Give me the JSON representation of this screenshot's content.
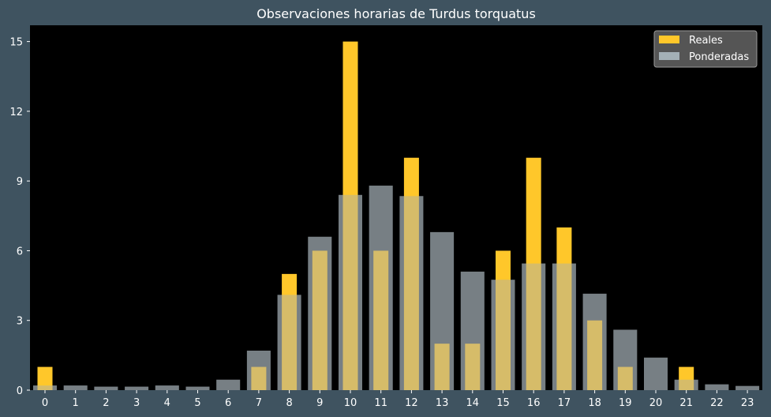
{
  "chart_data": {
    "type": "bar",
    "title": "Observaciones horarias de Turdus torquatus",
    "xlabel": "",
    "ylabel": "",
    "categories": [
      "0",
      "1",
      "2",
      "3",
      "4",
      "5",
      "6",
      "7",
      "8",
      "9",
      "10",
      "11",
      "12",
      "13",
      "14",
      "15",
      "16",
      "17",
      "18",
      "19",
      "20",
      "21",
      "22",
      "23"
    ],
    "ylim": [
      0,
      15.7
    ],
    "yticks": [
      "0",
      "3",
      "6",
      "9",
      "12",
      "15"
    ],
    "ytick_values": [
      0,
      3,
      6,
      9,
      12,
      15
    ],
    "grid": false,
    "legend_position": "top-right",
    "series": [
      {
        "name": "Reales",
        "color": "#ffc72a",
        "values": [
          1,
          0,
          0,
          0,
          0,
          0,
          0,
          1,
          5,
          6,
          15,
          6,
          10,
          2,
          2,
          6,
          10,
          7,
          3,
          1,
          0,
          1,
          0,
          0
        ]
      },
      {
        "name": "Ponderadas",
        "color": "#a4b0b6",
        "values": [
          0.2,
          0.2,
          0.15,
          0.15,
          0.2,
          0.15,
          0.45,
          1.7,
          4.1,
          6.6,
          8.4,
          8.8,
          8.35,
          6.8,
          5.1,
          4.75,
          5.45,
          5.45,
          4.15,
          2.6,
          1.4,
          0.45,
          0.25,
          0.18
        ]
      }
    ],
    "colors": {
      "page_background": "#3f5360",
      "plot_background": "#000000",
      "legend_background": "#555555",
      "text": "#ffffff"
    }
  }
}
